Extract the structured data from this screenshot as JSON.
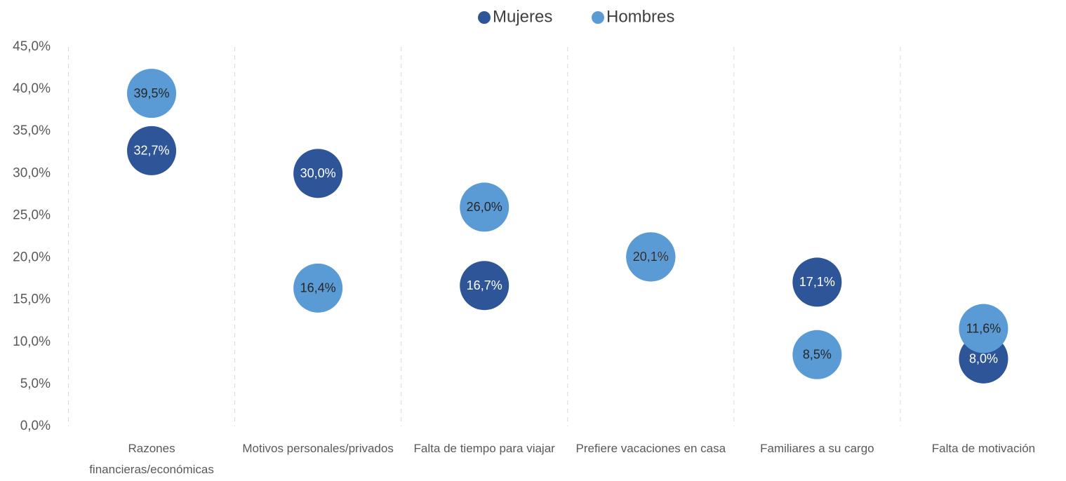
{
  "chart_data": {
    "type": "dot",
    "categories": [
      "Razones financieras/económicas",
      "Motivos personales/privados",
      "Falta de tiempo para viajar",
      "Prefiere vacaciones en casa",
      "Familiares a su cargo",
      "Falta de motivación"
    ],
    "series": [
      {
        "name": "Mujeres",
        "color": "#2e5597",
        "values": [
          32.7,
          30.0,
          16.7,
          20.1,
          17.1,
          8.0
        ],
        "value_labels": [
          "32,7%",
          "30,0%",
          "16,7%",
          "20,1%",
          "17,1%",
          "8,0%"
        ]
      },
      {
        "name": "Hombres",
        "color": "#5b9bd5",
        "values": [
          39.5,
          16.4,
          26.0,
          20.1,
          8.5,
          11.6
        ],
        "value_labels": [
          "39,5%",
          "16,4%",
          "26,0%",
          "20,1%",
          "8,5%",
          "11,6%"
        ]
      }
    ],
    "ylim": [
      0,
      45
    ],
    "yticks": [
      {
        "value": 0,
        "label": "0,0%"
      },
      {
        "value": 5,
        "label": "5,0%"
      },
      {
        "value": 10,
        "label": "10,0%"
      },
      {
        "value": 15,
        "label": "15,0%"
      },
      {
        "value": 20,
        "label": "20,0%"
      },
      {
        "value": 25,
        "label": "25,0%"
      },
      {
        "value": 30,
        "label": "30,0%"
      },
      {
        "value": 35,
        "label": "35,0%"
      },
      {
        "value": 40,
        "label": "40,0%"
      },
      {
        "value": 45,
        "label": "45,0%"
      }
    ],
    "legend": "top"
  }
}
